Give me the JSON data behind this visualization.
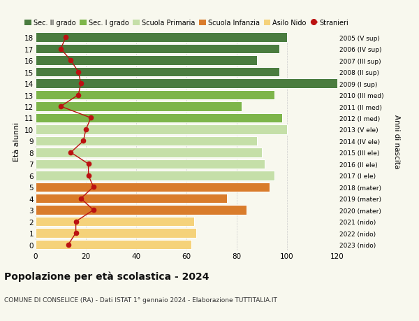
{
  "ages": [
    18,
    17,
    16,
    15,
    14,
    13,
    12,
    11,
    10,
    9,
    8,
    7,
    6,
    5,
    4,
    3,
    2,
    1,
    0
  ],
  "years_labels": [
    "2005 (V sup)",
    "2006 (IV sup)",
    "2007 (III sup)",
    "2008 (II sup)",
    "2009 (I sup)",
    "2010 (III med)",
    "2011 (II med)",
    "2012 (I med)",
    "2013 (V ele)",
    "2014 (IV ele)",
    "2015 (III ele)",
    "2016 (II ele)",
    "2017 (I ele)",
    "2018 (mater)",
    "2019 (mater)",
    "2020 (mater)",
    "2021 (nido)",
    "2022 (nido)",
    "2023 (nido)"
  ],
  "bar_values": [
    100,
    97,
    88,
    97,
    122,
    95,
    82,
    98,
    100,
    88,
    90,
    91,
    95,
    93,
    76,
    84,
    63,
    64,
    62
  ],
  "stranieri_values": [
    12,
    10,
    14,
    17,
    18,
    17,
    10,
    22,
    20,
    19,
    14,
    21,
    21,
    23,
    18,
    23,
    16,
    16,
    13
  ],
  "bar_colors": [
    "#4a7c3f",
    "#4a7c3f",
    "#4a7c3f",
    "#4a7c3f",
    "#4a7c3f",
    "#7db54a",
    "#7db54a",
    "#7db54a",
    "#c5dfa8",
    "#c5dfa8",
    "#c5dfa8",
    "#c5dfa8",
    "#c5dfa8",
    "#d97c2b",
    "#d97c2b",
    "#d97c2b",
    "#f5d27a",
    "#f5d27a",
    "#f5d27a"
  ],
  "legend_labels": [
    "Sec. II grado",
    "Sec. I grado",
    "Scuola Primaria",
    "Scuola Infanzia",
    "Asilo Nido",
    "Stranieri"
  ],
  "legend_colors": [
    "#4a7c3f",
    "#7db54a",
    "#c5dfa8",
    "#d97c2b",
    "#f5d27a",
    "#bb1111"
  ],
  "stranieri_color": "#bb1111",
  "title": "Popolazione per età scolastica - 2024",
  "subtitle": "COMUNE DI CONSELICE (RA) - Dati ISTAT 1° gennaio 2024 - Elaborazione TUTTITALIA.IT",
  "ylabel": "Età alunni",
  "right_ylabel": "Anni di nascita",
  "xlim": [
    0,
    120
  ],
  "xticks": [
    0,
    20,
    40,
    60,
    80,
    100,
    120
  ],
  "background_color": "#f8f8ee",
  "grid_color": "#cccccc"
}
